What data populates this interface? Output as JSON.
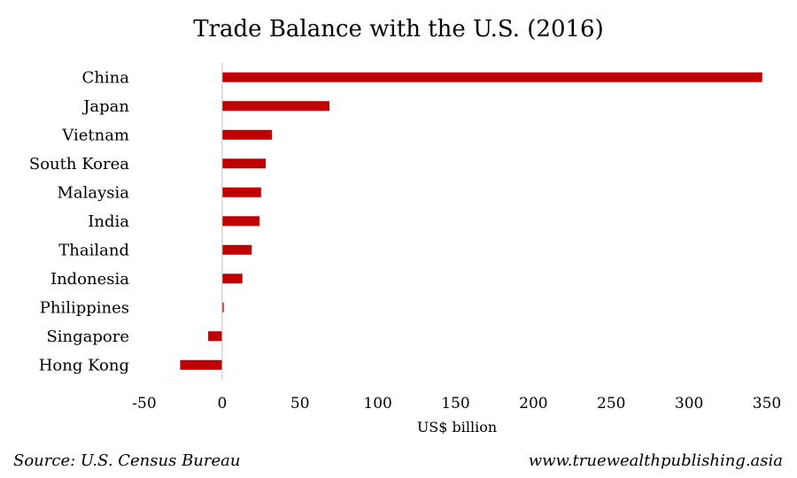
{
  "chart_data": {
    "type": "bar",
    "orientation": "horizontal",
    "title": "Trade Balance with the U.S. (2016)",
    "xlabel": "US$ billion",
    "ylabel": "",
    "categories": [
      "China",
      "Japan",
      "Vietnam",
      "South Korea",
      "Malaysia",
      "India",
      "Thailand",
      "Indonesia",
      "Philippines",
      "Singapore",
      "Hong Kong"
    ],
    "values": [
      347,
      69,
      32,
      28,
      25,
      24,
      19,
      13,
      1,
      -9,
      -27
    ],
    "xlim": [
      -50,
      350
    ],
    "xticks": [
      "-50",
      "0",
      "50",
      "100",
      "150",
      "200",
      "250",
      "300",
      "350"
    ],
    "grid": false,
    "bar_color": "#c00000"
  },
  "footer": {
    "source": "Source: U.S. Census Bureau",
    "website": "www.truewealthpublishing.asia"
  }
}
